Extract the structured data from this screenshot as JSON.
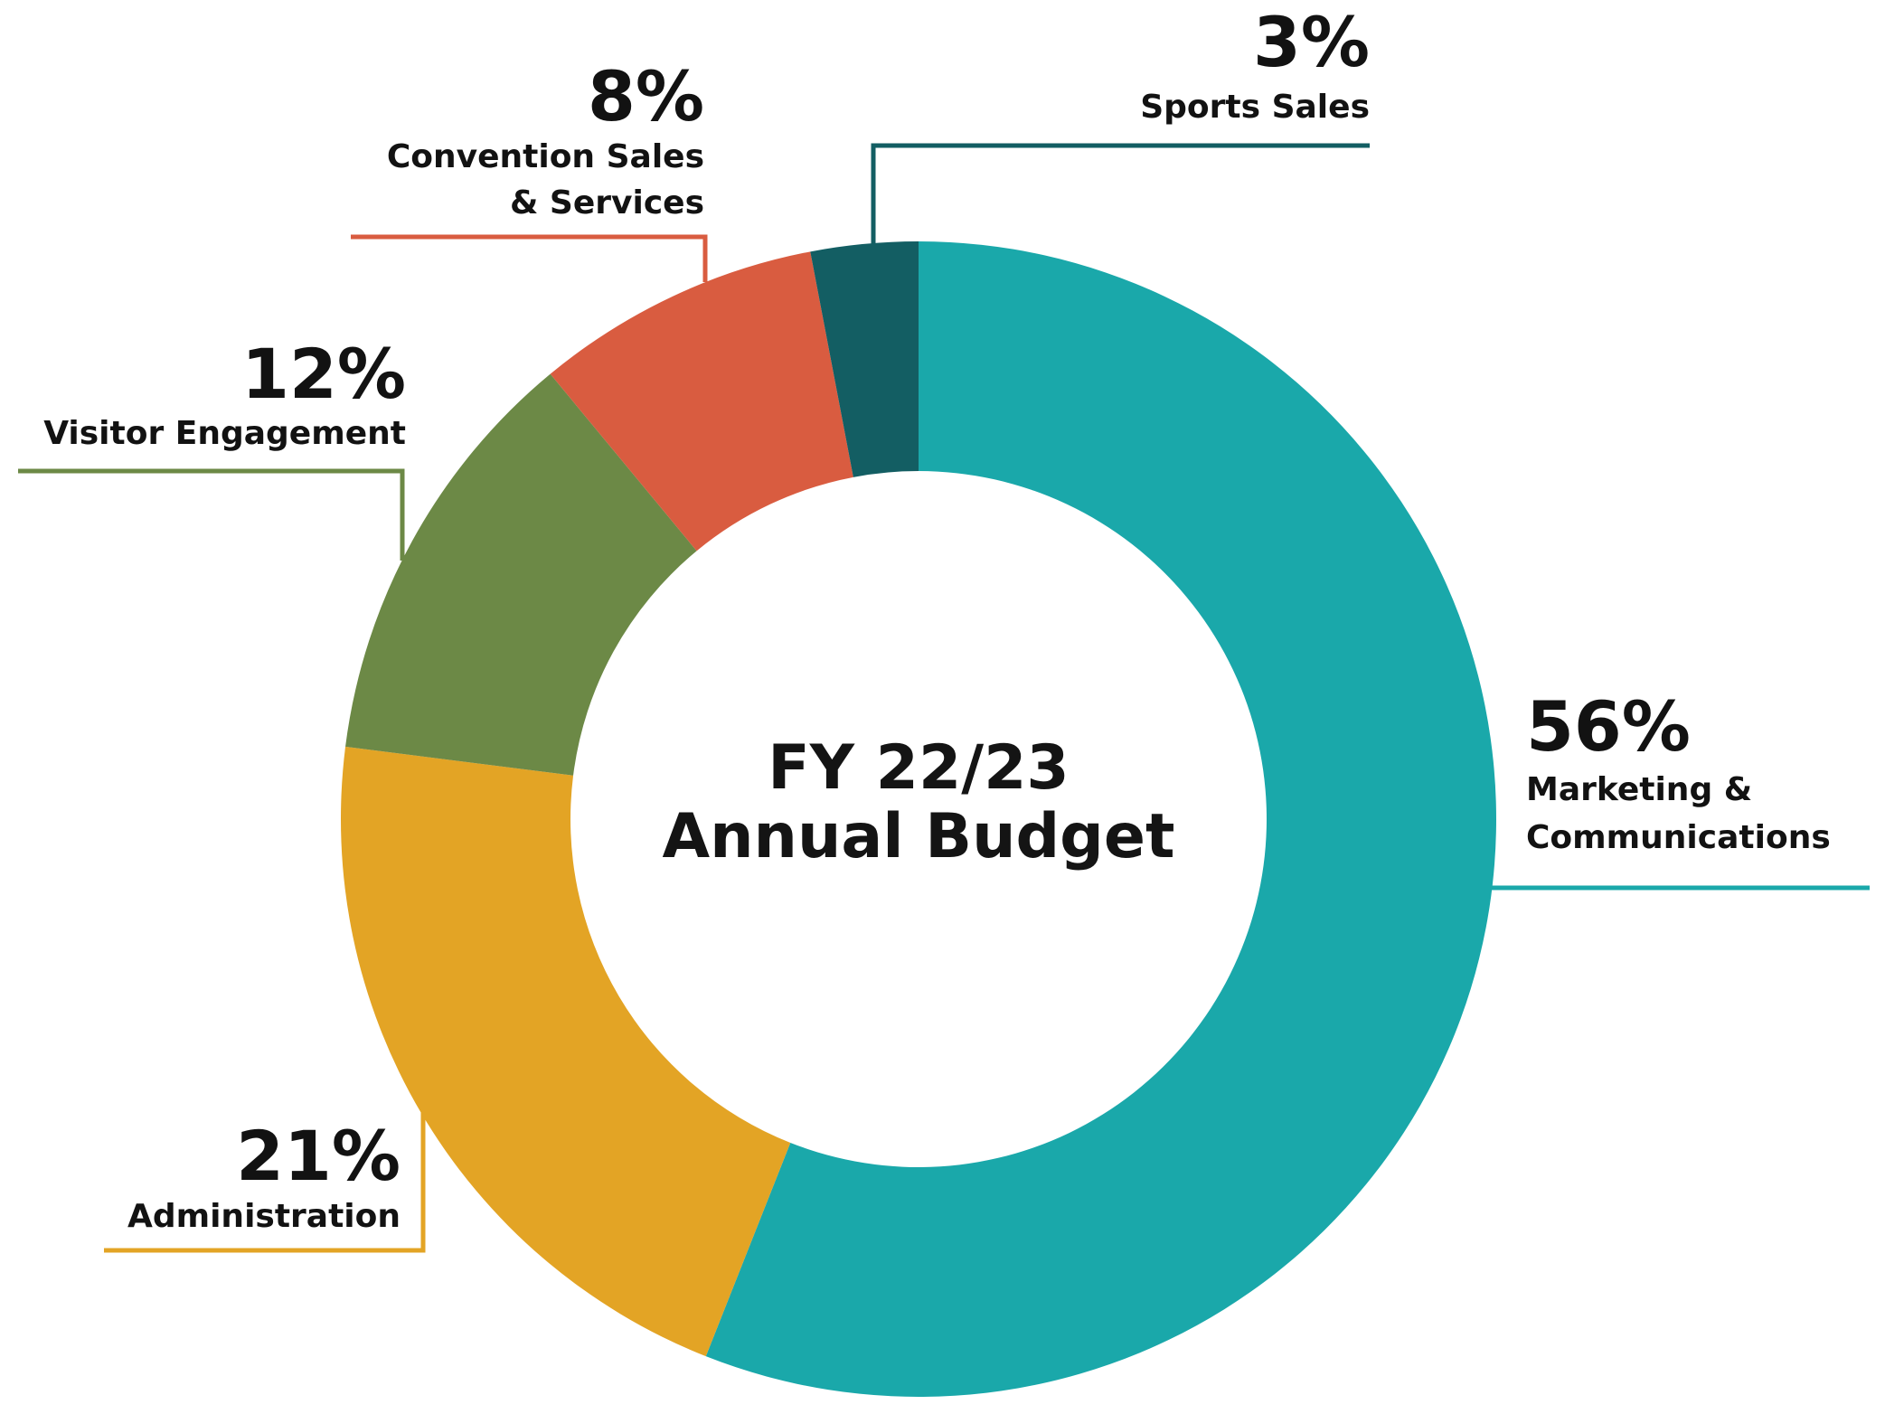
{
  "chart_data": {
    "type": "pie",
    "variant": "donut",
    "title_lines": [
      "FY 22/23",
      "Annual Budget"
    ],
    "unit": "%",
    "slices": [
      {
        "id": "marketing",
        "value": 56,
        "label_lines": [
          "Marketing &",
          "Communications"
        ],
        "color": "#1AA8AA"
      },
      {
        "id": "administration",
        "value": 21,
        "label_lines": [
          "Administration"
        ],
        "color": "#E3A425"
      },
      {
        "id": "visitor",
        "value": 12,
        "label_lines": [
          "Visitor Engagement"
        ],
        "color": "#6C8946"
      },
      {
        "id": "convention",
        "value": 8,
        "label_lines": [
          "Convention Sales",
          "& Services"
        ],
        "color": "#D95C40"
      },
      {
        "id": "sports",
        "value": 3,
        "label_lines": [
          "Sports Sales"
        ],
        "color": "#135E63"
      }
    ]
  }
}
